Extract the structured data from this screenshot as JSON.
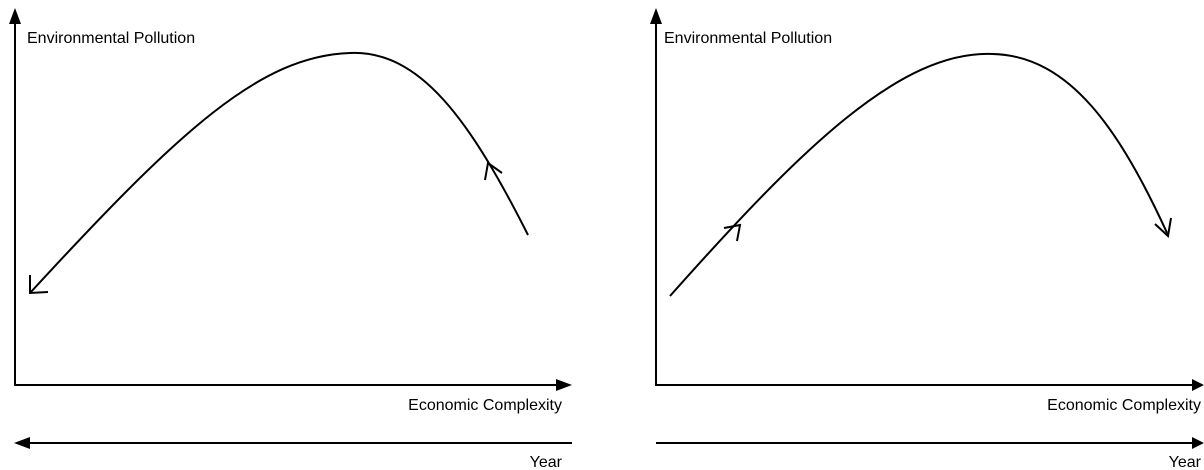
{
  "panels": [
    {
      "y_axis_label": "Environmental Pollution",
      "x_axis_label": "Economic Complexity",
      "time_label": "Year"
    },
    {
      "y_axis_label": "Environmental Pollution",
      "x_axis_label": "Economic Complexity",
      "time_label": "Year"
    }
  ]
}
